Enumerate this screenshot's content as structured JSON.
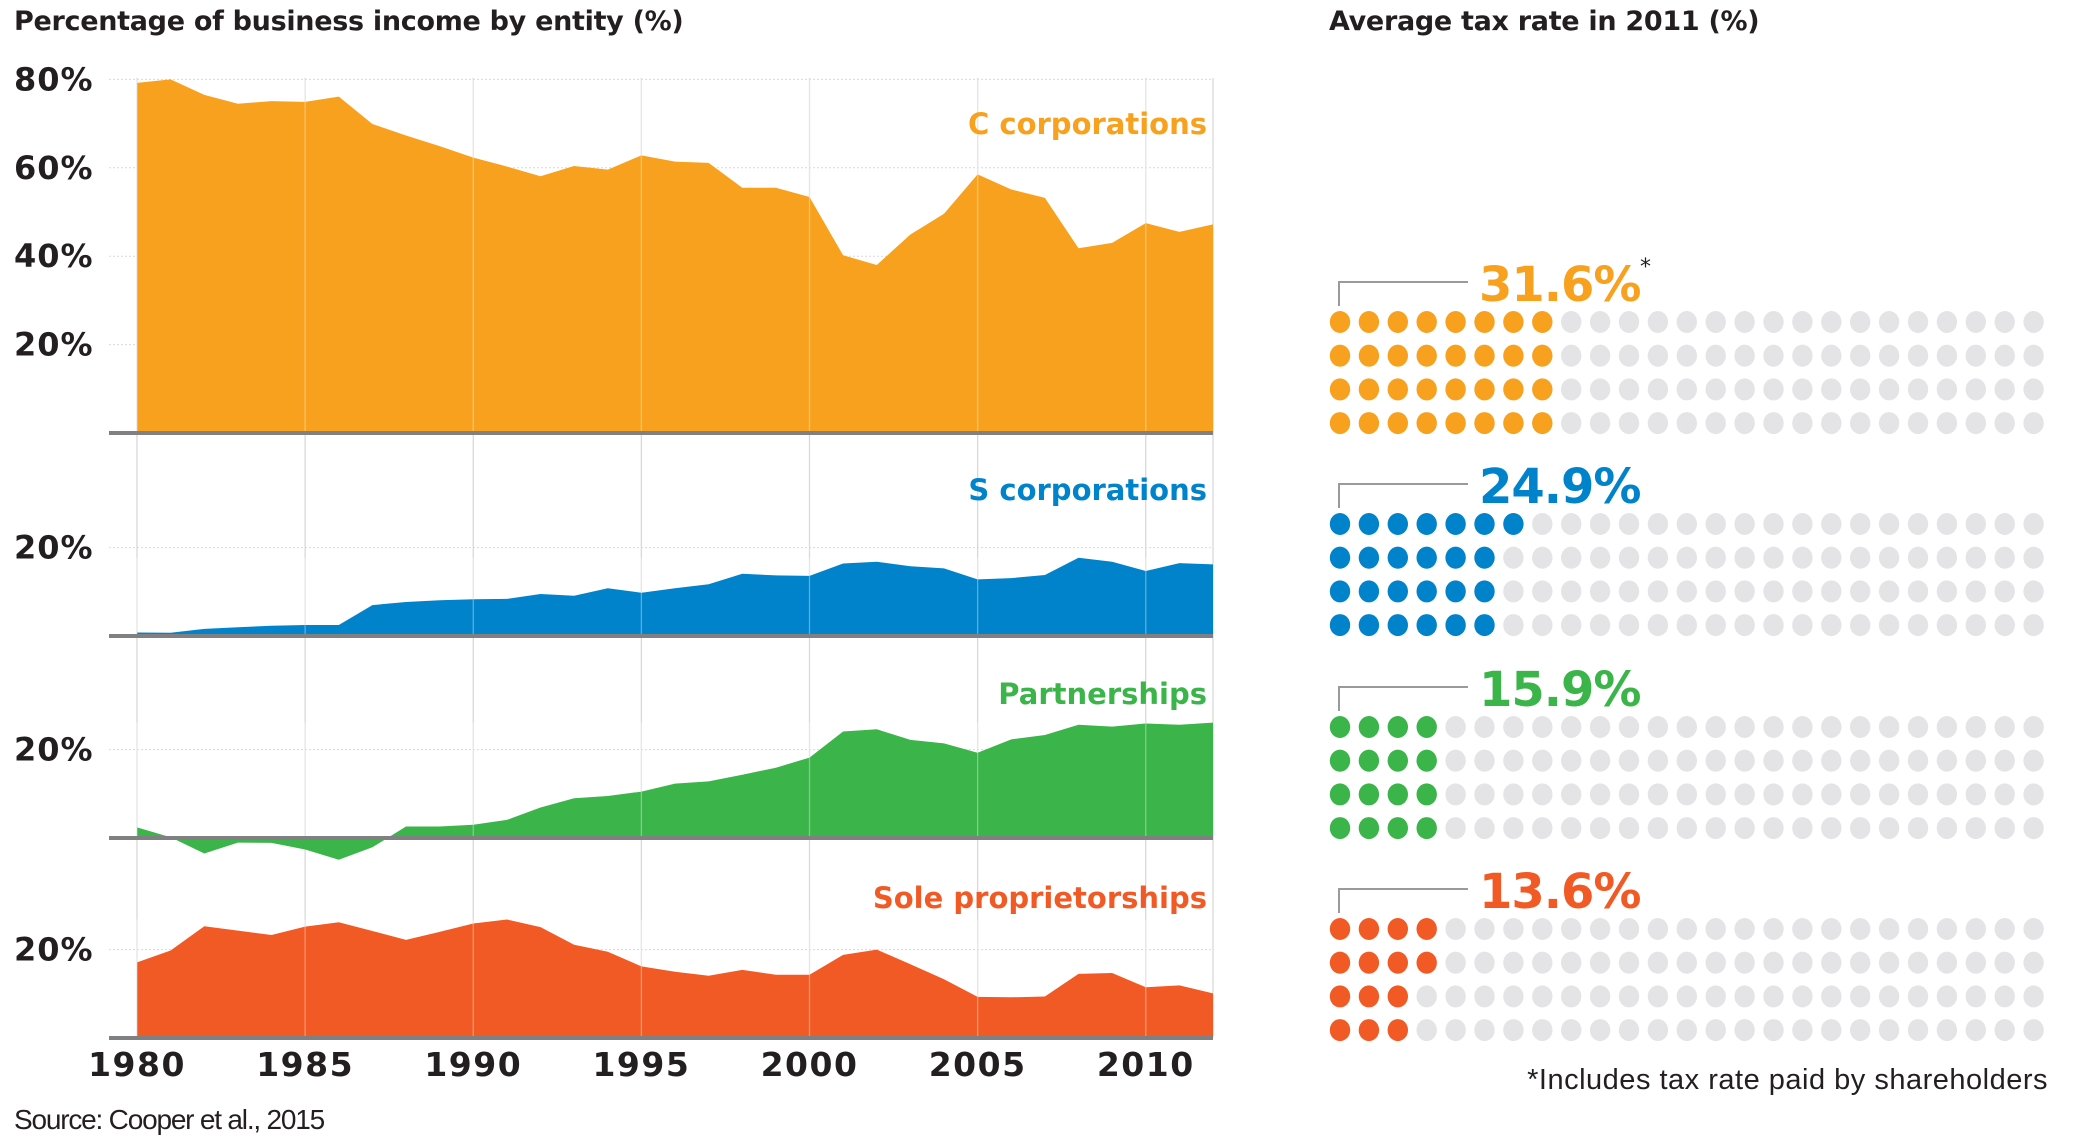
{
  "left_title": "Percentage of business income by entity (%)",
  "right_title": "Average tax rate in 2011 (%)",
  "source": "Source: Cooper et al., 2015",
  "footnote": "*Includes tax rate paid by shareholders",
  "colors": {
    "c_corp": "#f7a11e",
    "s_corp": "#0083cb",
    "partnership": "#3bb44a",
    "sole_prop": "#f15a24",
    "dot_empty": "#e4e4e6",
    "axis": "#808083",
    "grid": "#d9d9d9",
    "leader": "#9a9a9c",
    "text": "#231f20"
  },
  "chart_data": [
    {
      "type": "area",
      "title": "Percentage of business income by entity (%)",
      "xlabel": "",
      "ylabel": "",
      "x": [
        1980,
        1981,
        1982,
        1983,
        1984,
        1985,
        1986,
        1987,
        1988,
        1989,
        1990,
        1991,
        1992,
        1993,
        1994,
        1995,
        1996,
        1997,
        1998,
        1999,
        2000,
        2001,
        2002,
        2003,
        2004,
        2005,
        2006,
        2007,
        2008,
        2009,
        2010,
        2011,
        2012
      ],
      "x_ticks": [
        "1980",
        "1985",
        "1990",
        "1995",
        "2000",
        "2005",
        "2010"
      ],
      "x_range": [
        1980,
        2012
      ],
      "grid": true,
      "panels": [
        {
          "name": "C corporations",
          "color_key": "c_corp",
          "y_ticks": [
            "20%",
            "40%",
            "60%",
            "80%"
          ],
          "y_tick_values": [
            20,
            40,
            60,
            80
          ],
          "ylim": [
            0,
            80
          ],
          "values": [
            79.2,
            80.0,
            76.5,
            74.5,
            75.1,
            74.9,
            76.1,
            69.9,
            67.3,
            64.9,
            62.3,
            60.3,
            58.1,
            60.4,
            59.6,
            62.8,
            61.4,
            61.1,
            55.5,
            55.5,
            53.4,
            40.2,
            38.0,
            44.9,
            49.6,
            58.5,
            55.1,
            53.2,
            41.8,
            43.0,
            47.5,
            45.5,
            47.2
          ]
        },
        {
          "name": "S corporations",
          "color_key": "s_corp",
          "y_ticks": [
            "20%"
          ],
          "y_tick_values": [
            20
          ],
          "ylim": [
            0,
            20
          ],
          "values": [
            0.8,
            0.75,
            1.6,
            2.0,
            2.3,
            2.5,
            2.5,
            7.0,
            7.7,
            8.1,
            8.3,
            8.4,
            9.5,
            9.1,
            10.8,
            9.8,
            10.8,
            11.7,
            14.1,
            13.7,
            13.6,
            16.4,
            16.8,
            15.8,
            15.3,
            12.8,
            13.1,
            13.8,
            17.7,
            16.8,
            14.7,
            16.5,
            16.2
          ]
        },
        {
          "name": "Partnerships",
          "color_key": "partnership",
          "y_ticks": [
            "20%"
          ],
          "y_tick_values": [
            20
          ],
          "ylim": [
            -5,
            20
          ],
          "values": [
            2.4,
            0.15,
            -3.5,
            -1.05,
            -1.1,
            -2.6,
            -4.9,
            -2.1,
            2.6,
            2.6,
            3.0,
            4.1,
            6.9,
            9.0,
            9.5,
            10.5,
            12.3,
            12.8,
            14.3,
            15.9,
            18.2,
            24.1,
            24.6,
            22.2,
            21.4,
            19.3,
            22.3,
            23.3,
            25.6,
            25.2,
            25.9,
            25.6,
            26.1
          ]
        },
        {
          "name": "Sole proprietorships",
          "color_key": "sole_prop",
          "y_ticks": [
            "20%"
          ],
          "y_tick_values": [
            20
          ],
          "ylim": [
            0,
            20
          ],
          "values": [
            17.1,
            19.8,
            25.3,
            24.3,
            23.3,
            25.2,
            26.2,
            24.2,
            22.2,
            24.0,
            25.9,
            26.8,
            25.1,
            21.1,
            19.5,
            16.2,
            15.0,
            14.1,
            15.4,
            14.3,
            14.3,
            18.8,
            20.0,
            16.7,
            13.3,
            9.3,
            9.2,
            9.4,
            14.5,
            14.7,
            11.5,
            11.9,
            10.1
          ]
        }
      ]
    },
    {
      "type": "dot-matrix",
      "title": "Average tax rate in 2011 (%)",
      "total_dots": 100,
      "rows": 4,
      "columns": 25,
      "items": [
        {
          "name": "C corporations",
          "color_key": "c_corp",
          "value": 31.6,
          "label": "31.6%",
          "note_marker": "*",
          "filled_per_row": [
            8,
            8,
            8,
            8
          ]
        },
        {
          "name": "S corporations",
          "color_key": "s_corp",
          "value": 24.9,
          "label": "24.9%",
          "note_marker": "",
          "filled_per_row": [
            7,
            6,
            6,
            6
          ]
        },
        {
          "name": "Partnerships",
          "color_key": "partnership",
          "value": 15.9,
          "label": "15.9%",
          "note_marker": "",
          "filled_per_row": [
            4,
            4,
            4,
            4
          ]
        },
        {
          "name": "Sole proprietorships",
          "color_key": "sole_prop",
          "value": 13.6,
          "label": "13.6%",
          "note_marker": "",
          "filled_per_row": [
            4,
            4,
            3,
            3
          ]
        }
      ]
    }
  ]
}
